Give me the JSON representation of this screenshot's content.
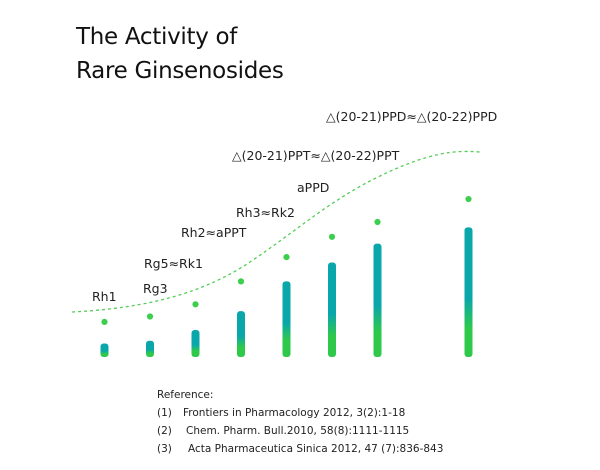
{
  "title_lines": [
    "The Activity of",
    "Rare Ginsenosides"
  ],
  "colors": {
    "bar_top": "#0aa7aa",
    "bar_bottom": "#2ec94a",
    "dot": "#3ccf4e",
    "curve": "#55cc55",
    "text": "#222222"
  },
  "chart_data": {
    "type": "bar",
    "title": "The Activity of Rare Ginsenosides",
    "categories": [
      "Rh1",
      "Rg3",
      "Rg5≈Rk1",
      "Rh2≈aPPT",
      "Rh3≈Rk2",
      "aPPD",
      "△(20-21)PPT≈△(20-22)PPT",
      "△(20-21)PPD≈△(20-22)PPD"
    ],
    "values": [
      1.0,
      1.2,
      2.0,
      3.4,
      5.6,
      7.0,
      8.4,
      9.6
    ],
    "marker_values": [
      2.6,
      3.0,
      3.9,
      5.6,
      7.4,
      8.9,
      10.0,
      11.7
    ],
    "x_positions": [
      1,
      2,
      3,
      4,
      5,
      6,
      7,
      9
    ],
    "ylim": [
      0,
      13
    ],
    "trend_line": "dashed smooth curve",
    "axes_visible": false,
    "grid": false
  },
  "references": {
    "heading": "Reference:",
    "items": [
      {
        "num": "(1)",
        "text": "Frontiers in Pharmacology 2012, 3(2):1-18"
      },
      {
        "num": "(2)",
        "text": "Chem. Pharm. Bull.2010, 58(8):1111-1115"
      },
      {
        "num": "(3)",
        "text": "Acta Pharmaceutica Sinica 2012, 47 (7):836-843"
      }
    ]
  }
}
